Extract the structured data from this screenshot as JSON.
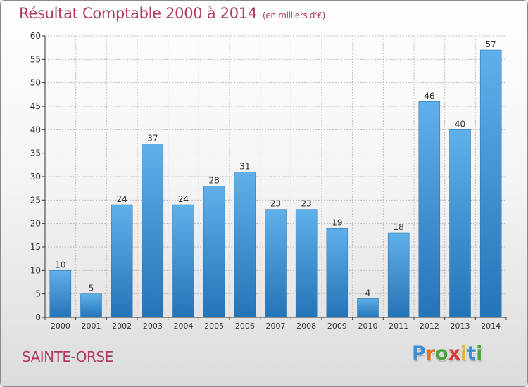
{
  "header": {
    "title": "Résultat Comptable 2000 à 2014",
    "subtitle": "(en milliers d'€)"
  },
  "footer": {
    "place": "SAINTE-ORSE",
    "logo_letters": [
      {
        "char": "P",
        "color": "#3a8fd4"
      },
      {
        "char": "r",
        "color": "#e8742a"
      },
      {
        "char": "o",
        "color": "#4aa63a"
      },
      {
        "char": "x",
        "color": "#d43a3a"
      },
      {
        "char": "i",
        "color": "#e8b020"
      },
      {
        "char": "t",
        "color": "#3a8fd4"
      },
      {
        "char": "i",
        "color": "#4aa63a"
      }
    ]
  },
  "colors": {
    "title": "#b23a62",
    "bar_light": "#5fb0ea",
    "bar_dark": "#2474b8",
    "grid": "#bdbdbd",
    "axis": "#333333"
  },
  "chart_data": {
    "type": "bar",
    "title": "Résultat Comptable 2000 à 2014",
    "subtitle": "(en milliers d'€)",
    "categories": [
      "2000",
      "2001",
      "2002",
      "2003",
      "2004",
      "2005",
      "2006",
      "2007",
      "2008",
      "2009",
      "2010",
      "2011",
      "2012",
      "2013",
      "2014"
    ],
    "values": [
      10,
      5,
      24,
      37,
      24,
      28,
      31,
      23,
      23,
      19,
      4,
      18,
      46,
      40,
      57
    ],
    "ylim": [
      0,
      60
    ],
    "yticks": [
      0,
      5,
      10,
      15,
      20,
      25,
      30,
      35,
      40,
      45,
      50,
      55,
      60
    ],
    "grid": true,
    "legend": "none"
  }
}
